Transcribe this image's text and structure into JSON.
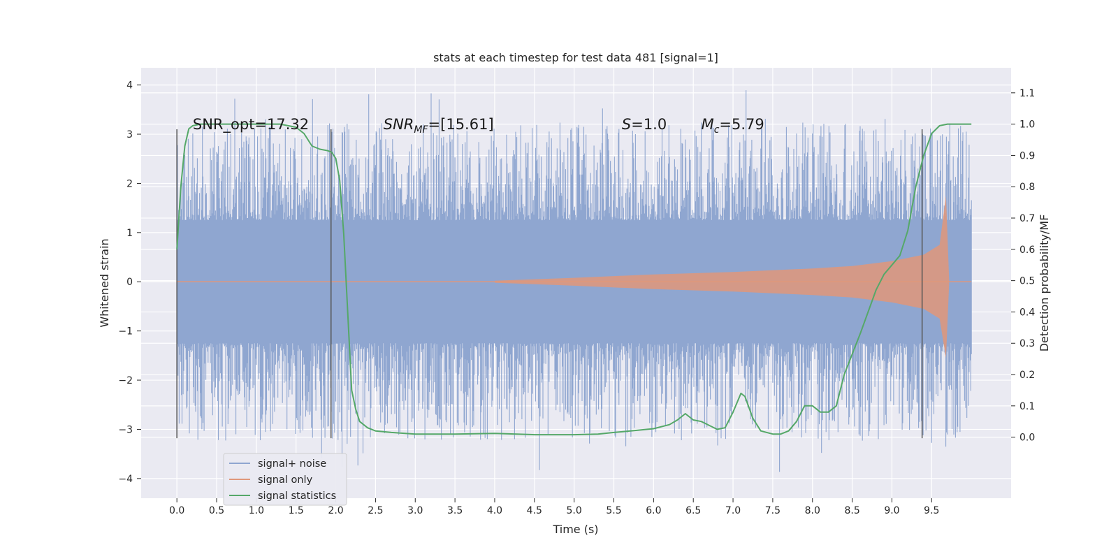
{
  "chart_data": {
    "type": "line",
    "title": "stats at each timestep for test data 481 [signal=1]",
    "xlabel": "Time (s)",
    "ylabel": "Whitened strain",
    "y2label": "Detection probability/MF",
    "xlim": [
      -0.45,
      10.5
    ],
    "ylim": [
      -4.4,
      4.35
    ],
    "y2lim": [
      -0.195,
      1.18
    ],
    "x_ticks": [
      "0.0",
      "0.5",
      "1.0",
      "1.5",
      "2.0",
      "2.5",
      "3.0",
      "3.5",
      "4.0",
      "4.5",
      "5.0",
      "5.5",
      "6.0",
      "6.5",
      "7.0",
      "7.5",
      "8.0",
      "8.5",
      "9.0",
      "9.5"
    ],
    "y_ticks": [
      "4",
      "3",
      "2",
      "1",
      "0",
      "−1",
      "−2",
      "−3",
      "−4"
    ],
    "y2_ticks": [
      "1.1",
      "1.0",
      "0.9",
      "0.8",
      "0.7",
      "0.6",
      "0.5",
      "0.4",
      "0.3",
      "0.2",
      "0.1",
      "0.0"
    ],
    "grid": true,
    "background": "#eaeaf2",
    "colors": {
      "signal_noise": "#8fa6d0",
      "signal_only": "#e0977a",
      "statistics": "#55a868",
      "vline": "#555555"
    },
    "vertical_lines": [
      0.0,
      1.94,
      9.38
    ],
    "vertical_line_yrange": [
      -3.18,
      3.1
    ],
    "series": [
      {
        "name": "signal+ noise",
        "kind": "noise",
        "x_range": [
          0.0,
          10.0
        ],
        "envelope_abs": 1.25,
        "spike_max": 3.9
      },
      {
        "name": "signal only",
        "kind": "chirp",
        "x_range": [
          0.0,
          9.72
        ],
        "amplitude_at": [
          [
            4.0,
            0.02
          ],
          [
            5.0,
            0.08
          ],
          [
            6.0,
            0.15
          ],
          [
            7.0,
            0.2
          ],
          [
            8.0,
            0.27
          ],
          [
            8.5,
            0.32
          ],
          [
            9.0,
            0.42
          ],
          [
            9.4,
            0.55
          ],
          [
            9.6,
            0.75
          ],
          [
            9.68,
            1.75
          ]
        ]
      },
      {
        "name": "signal statistics",
        "kind": "line",
        "axis": "right",
        "x": [
          0.0,
          0.05,
          0.1,
          0.15,
          0.2,
          0.3,
          0.5,
          0.8,
          1.0,
          1.3,
          1.5,
          1.6,
          1.7,
          1.8,
          1.9,
          1.95,
          2.0,
          2.05,
          2.1,
          2.15,
          2.2,
          2.25,
          2.3,
          2.4,
          2.5,
          2.7,
          3.0,
          3.5,
          4.0,
          4.5,
          5.0,
          5.3,
          5.5,
          5.8,
          6.0,
          6.2,
          6.3,
          6.4,
          6.5,
          6.6,
          6.8,
          6.9,
          7.0,
          7.1,
          7.15,
          7.25,
          7.35,
          7.5,
          7.6,
          7.7,
          7.8,
          7.9,
          8.0,
          8.1,
          8.2,
          8.3,
          8.4,
          8.6,
          8.8,
          8.9,
          9.0,
          9.1,
          9.2,
          9.3,
          9.4,
          9.5,
          9.6,
          9.7,
          9.8,
          10.0
        ],
        "y": [
          0.6,
          0.8,
          0.93,
          0.985,
          0.995,
          1.0,
          1.0,
          1.0,
          1.0,
          1.0,
          0.99,
          0.97,
          0.93,
          0.92,
          0.915,
          0.91,
          0.89,
          0.82,
          0.65,
          0.4,
          0.15,
          0.09,
          0.05,
          0.03,
          0.02,
          0.015,
          0.01,
          0.01,
          0.012,
          0.008,
          0.008,
          0.01,
          0.015,
          0.022,
          0.027,
          0.04,
          0.055,
          0.075,
          0.055,
          0.05,
          0.025,
          0.03,
          0.08,
          0.14,
          0.13,
          0.06,
          0.02,
          0.01,
          0.01,
          0.02,
          0.05,
          0.1,
          0.1,
          0.08,
          0.08,
          0.1,
          0.2,
          0.33,
          0.47,
          0.52,
          0.55,
          0.58,
          0.66,
          0.8,
          0.9,
          0.97,
          0.995,
          1.0,
          1.0,
          1.0
        ]
      }
    ],
    "annotations": [
      {
        "id": "snr_opt",
        "text": "SNR_opt=17.32",
        "x": 0.2,
        "y": 3.1
      },
      {
        "id": "snr_mf",
        "main": "SNR",
        "sub": "MF",
        "rest": "=[15.61]",
        "x": 2.6,
        "y": 3.1
      },
      {
        "id": "s",
        "main": "S",
        "rest": "=1.0",
        "x": 5.6,
        "y": 3.1
      },
      {
        "id": "mc",
        "main": "M",
        "sub": "c",
        "rest": "=5.79",
        "x": 6.6,
        "y": 3.1
      }
    ],
    "legend": {
      "location": "lower-left",
      "entries": [
        "signal+ noise",
        "signal only",
        "signal statistics"
      ]
    }
  }
}
